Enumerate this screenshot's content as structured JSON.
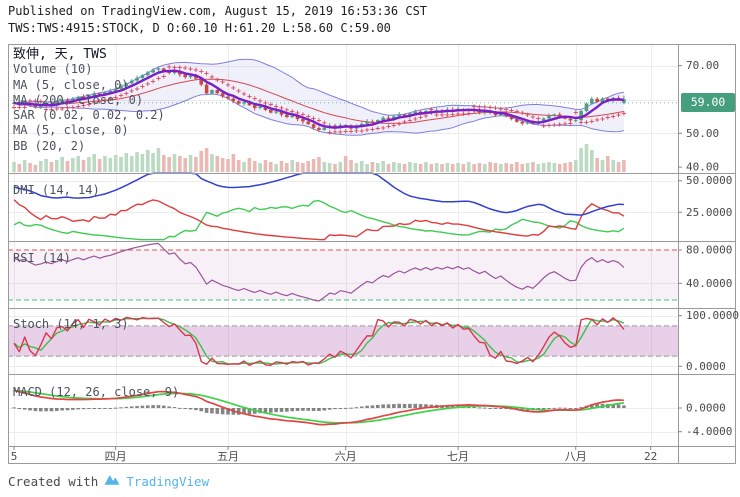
{
  "header": {
    "published_line": "Published on TradingView.com, August 15, 2019 16:53:36 CST",
    "symbol_ohlc_line": "TWS:TWS:4915:STOCK, D O:60.10 H:61.20 L:58.60 C:59.00"
  },
  "footer": {
    "created_with": "Created with",
    "brand": "TradingView"
  },
  "time_axis": {
    "ticks": [
      {
        "label": "5",
        "bar": 0
      },
      {
        "label": "四月",
        "bar": 19
      },
      {
        "label": "五月",
        "bar": 40
      },
      {
        "label": "六月",
        "bar": 62
      },
      {
        "label": "七月",
        "bar": 83
      },
      {
        "label": "八月",
        "bar": 105
      },
      {
        "label": "22",
        "bar": 119
      }
    ]
  },
  "chart_data": {
    "type": "candlestick_multi_panel",
    "symbol": "TWS:TWS:4915:STOCK",
    "interval": "D",
    "ohlc_readout": {
      "open": 60.1,
      "high": 61.2,
      "low": 58.6,
      "close": 59.0
    },
    "panels": {
      "main": {
        "title": "致伸, 天, TWS",
        "legend": [
          "Volume (10)",
          "MA (5, close, 0)",
          "MA (200, close, 0)",
          "SAR (0.02, 0.02, 0.2)",
          "MA (5, close, 0)",
          "BB (20, 2)"
        ],
        "ticks": [
          {
            "value": 70,
            "label": "70.00"
          },
          {
            "value": 50,
            "label": "50.00"
          },
          {
            "value": 40,
            "label": "40.00"
          }
        ],
        "grid_levels": [
          70,
          60,
          50
        ],
        "badge": {
          "label": "59.00",
          "value": 59
        },
        "ylim": [
          38.5,
          76.5
        ]
      },
      "dmi": {
        "label": "DMI (14, 14)",
        "ticks": [
          {
            "value": 50,
            "label": "50.0000"
          },
          {
            "value": 25,
            "label": "25.0000"
          }
        ],
        "grid_levels": [
          50,
          25
        ],
        "ylim": [
          3,
          55.5
        ]
      },
      "rsi": {
        "label": "RSI (14)",
        "ticks": [
          {
            "value": 80,
            "label": "80.0000"
          },
          {
            "value": 40,
            "label": "40.0000"
          }
        ],
        "grid_levels": [
          40
        ],
        "bands": {
          "upper": 80,
          "lower": 20
        },
        "ylim": [
          11.5,
          91
        ]
      },
      "stoch": {
        "label": "Stoch (14, 1, 3)",
        "ticks": [
          {
            "value": 100,
            "label": "100.0000"
          },
          {
            "value": 0,
            "label": "0.0000"
          }
        ],
        "grid_levels": [
          100,
          0
        ],
        "bands": {
          "upper": 80,
          "lower": 20
        },
        "ylim": [
          -14,
          115
        ]
      },
      "macd": {
        "label": "MACD (12, 26, close, 9)",
        "ticks": [
          {
            "value": 0,
            "label": "0.0000"
          },
          {
            "value": -4,
            "label": "-4.0000"
          }
        ],
        "grid_levels": [
          0,
          -4
        ],
        "ylim": [
          -6.4,
          5.8
        ]
      }
    },
    "first_open": 58.7,
    "closes": [
      59.0,
      58.5,
      58.9,
      58.3,
      57.8,
      58.2,
      58.8,
      58.5,
      59.2,
      59.8,
      59.5,
      60.2,
      60.8,
      60.5,
      61.2,
      61.8,
      61.5,
      62.1,
      62.5,
      63.2,
      64.0,
      64.8,
      65.6,
      66.4,
      67.2,
      68.0,
      68.8,
      69.2,
      68.5,
      67.8,
      68.3,
      67.4,
      66.6,
      67.0,
      66.2,
      64.4,
      61.8,
      62.8,
      61.9,
      60.9,
      60.3,
      59.5,
      58.8,
      59.2,
      58.3,
      57.5,
      57.9,
      56.9,
      56.1,
      56.5,
      55.5,
      54.8,
      55.2,
      54.2,
      53.5,
      52.7,
      51.6,
      51.0,
      51.6,
      52.3,
      51.8,
      52.4,
      52.0,
      51.4,
      52.1,
      52.8,
      53.5,
      53.1,
      53.9,
      54.6,
      54.2,
      55.0,
      55.6,
      55.2,
      55.9,
      56.4,
      56.0,
      56.6,
      56.2,
      56.8,
      56.5,
      57.0,
      56.7,
      57.2,
      56.8,
      57.1,
      56.6,
      56.2,
      56.6,
      56.0,
      55.4,
      55.8,
      55.0,
      54.2,
      53.4,
      52.9,
      53.3,
      52.8,
      53.5,
      54.4,
      55.2,
      55.6,
      55.0,
      54.3,
      53.8,
      53.9,
      56.6,
      58.8,
      60.2,
      59.3,
      60.3,
      59.7,
      60.5,
      60.1,
      59.0
    ],
    "volumes": [
      10,
      8,
      12,
      9,
      7,
      11,
      13,
      10,
      12,
      15,
      11,
      14,
      16,
      12,
      15,
      18,
      13,
      16,
      14,
      17,
      15,
      19,
      16,
      20,
      18,
      22,
      19,
      24,
      17,
      15,
      18,
      16,
      14,
      17,
      15,
      21,
      24,
      18,
      16,
      14,
      13,
      18,
      12,
      10,
      14,
      11,
      9,
      12,
      10,
      8,
      11,
      9,
      12,
      10,
      9,
      11,
      13,
      15,
      10,
      9,
      8,
      10,
      16,
      12,
      9,
      11,
      8,
      10,
      9,
      11,
      8,
      10,
      9,
      8,
      10,
      9,
      8,
      10,
      8,
      9,
      8,
      9,
      8,
      9,
      8,
      10,
      8,
      9,
      8,
      10,
      9,
      8,
      9,
      8,
      10,
      8,
      9,
      10,
      8,
      9,
      10,
      9,
      8,
      9,
      10,
      12,
      24,
      28,
      22,
      14,
      12,
      16,
      12,
      10,
      12
    ],
    "last_bar": {
      "o": 60.1,
      "h": 61.2,
      "l": 58.6,
      "c": 59.0,
      "render_color": "up"
    },
    "indicators": [
      {
        "name": "Bollinger Bands",
        "params": "20, 2"
      },
      {
        "name": "MA fast",
        "params": "5, close"
      },
      {
        "name": "Parabolic SAR",
        "params": "0.02, 0.02, 0.2"
      },
      {
        "name": "DMI",
        "params": "14, 14",
        "series": [
          "ADX",
          "+DI",
          "-DI"
        ]
      },
      {
        "name": "RSI",
        "params": "14"
      },
      {
        "name": "Stochastic",
        "params": "14, 1, 3",
        "series": [
          "%K",
          "%D"
        ]
      },
      {
        "name": "MACD",
        "params": "12, 26, close, 9",
        "series": [
          "MACD",
          "Signal",
          "Histogram"
        ]
      }
    ]
  },
  "colors": {
    "up": "#4f9e82",
    "down": "#c54b42",
    "vol_up": "#bcd9c4",
    "vol_down": "#eab9b3",
    "ma_fast": "#7a1ec8",
    "bb_line": "#6a6ad8",
    "bb_fill": "rgba(108,108,214,0.10)",
    "bb_basis": "#d6484f",
    "sar": "#e0485f",
    "dmi_adx": "#3340cf",
    "dmi_plus": "#df3d3d",
    "dmi_minus": "#3fcc52",
    "rsi_line": "#9a559c",
    "rsi_upper_band": "#e05252",
    "rsi_lower_band": "#3fc47c",
    "rsi_fill": "rgba(163,89,164,0.09)",
    "stoch_k": "#d8374f",
    "stoch_d": "#3fbf4a",
    "stoch_fill": "rgba(166,77,167,0.26)",
    "stoch_band": "#9b9b9b",
    "macd_fast": "#e04545",
    "macd_slow": "#3fd24a",
    "macd_hist": "#6e6e6e",
    "grid": "#ececec",
    "frame": "#9a9a9a",
    "axis_text": "#4a4a4a",
    "badge_bg": "#459f7c",
    "last_price_line": "#459f7c",
    "brand_blue": "#53b5e8"
  }
}
